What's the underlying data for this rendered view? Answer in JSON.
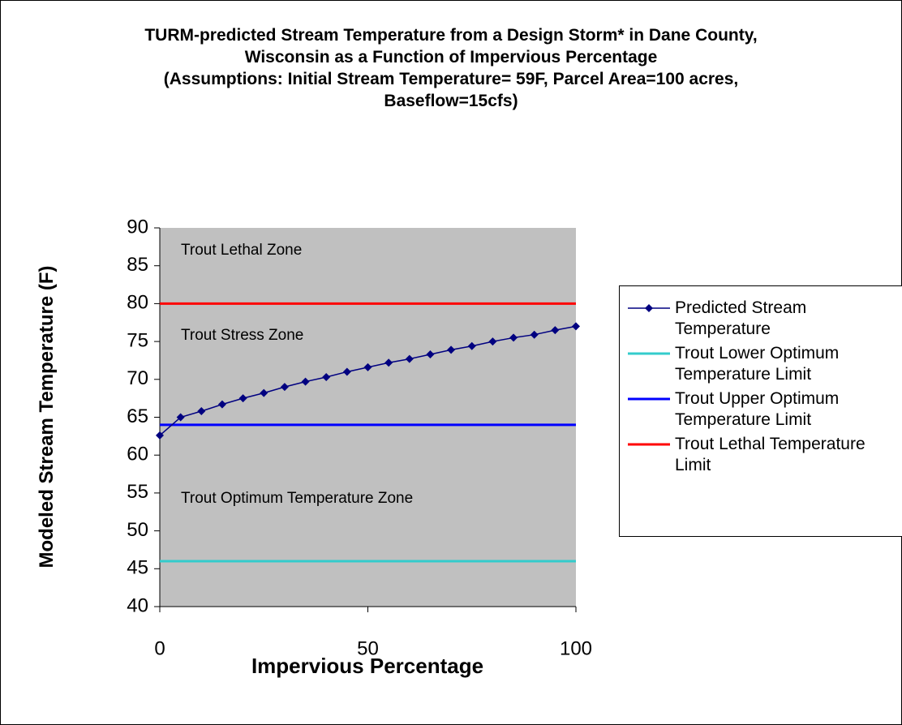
{
  "chart_data": {
    "type": "line",
    "title": "TURM-predicted Stream Temperature from a Design Storm* in Dane County, Wisconsin as a Function of Impervious Percentage",
    "subtitle": "(Assumptions: Initial Stream Temperature= 59F, Parcel Area=100 acres, Baseflow=15cfs)",
    "x_label": "Impervious Percentage",
    "y_label": "Modeled Stream Temperature (F)",
    "annotations": [
      "Trout Lethal Zone",
      "Trout Stress Zone",
      "Trout Optimum Temperature Zone"
    ],
    "plot_background": "#c0c0c0",
    "xlim": [
      0,
      100
    ],
    "xticks": [
      0,
      50,
      100
    ],
    "ylim": [
      40,
      90
    ],
    "yticks": [
      40,
      45,
      50,
      55,
      60,
      65,
      70,
      75,
      80,
      85,
      90
    ],
    "legend": "right",
    "series": [
      {
        "name": "Predicted Stream Temperature",
        "color": "#000080",
        "marker": "diamond",
        "x": [
          0,
          5,
          10,
          15,
          20,
          25,
          30,
          35,
          40,
          45,
          50,
          55,
          60,
          65,
          70,
          75,
          80,
          85,
          90,
          95,
          100
        ],
        "values": [
          62.6,
          65.0,
          65.8,
          66.7,
          67.5,
          68.2,
          69.0,
          69.7,
          70.3,
          71.0,
          71.6,
          72.2,
          72.7,
          73.3,
          73.9,
          74.4,
          75.0,
          75.5,
          75.9,
          76.5,
          77.0
        ]
      },
      {
        "name": "Trout Lower Optimum Temperature Limit",
        "color": "#33cccc",
        "x": [
          0,
          100
        ],
        "values": [
          46,
          46
        ]
      },
      {
        "name": "Trout Upper Optimum Temperature Limit",
        "color": "#0000ff",
        "x": [
          0,
          100
        ],
        "values": [
          64,
          64
        ]
      },
      {
        "name": "Trout Lethal Temperature Limit",
        "color": "#ff0000",
        "x": [
          0,
          100
        ],
        "values": [
          80,
          80
        ]
      }
    ]
  }
}
